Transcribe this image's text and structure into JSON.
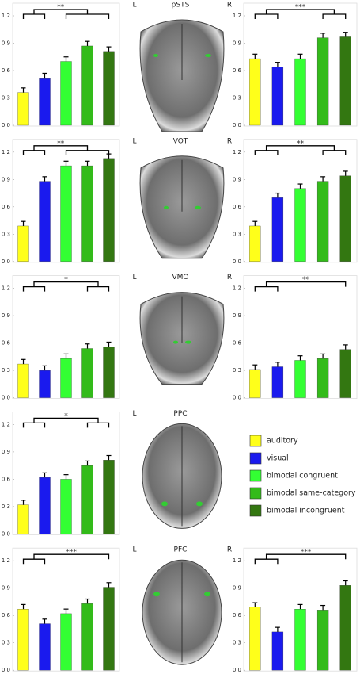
{
  "regions": [
    {
      "name": "pSTS",
      "left": "L",
      "right": "R"
    },
    {
      "name": "VOT",
      "left": "L",
      "right": "R"
    },
    {
      "name": "VMO",
      "left": "L",
      "right": "R"
    },
    {
      "name": "PPC",
      "left": "L"
    },
    {
      "name": "PFC",
      "left": "L",
      "right": "R"
    }
  ],
  "legend": [
    {
      "name": "auditory",
      "color": "#ffff1a"
    },
    {
      "name": "visual",
      "color": "#1a1aee"
    },
    {
      "name": "bimodal congruent",
      "color": "#33ff33"
    },
    {
      "name": "bimodal same-category",
      "color": "#33bb1a"
    },
    {
      "name": "bimodal incongruent",
      "color": "#337711"
    }
  ],
  "chart_data": [
    {
      "type": "bar",
      "values": [
        0.36,
        0.52,
        0.7,
        0.87,
        0.81
      ],
      "errors": [
        0.05,
        0.05,
        0.05,
        0.05,
        0.05
      ],
      "ylim": [
        0,
        1.2
      ],
      "yticks": [
        {
          "value": 0,
          "label": "0.0"
        },
        0.3,
        0.6,
        0.9,
        1.2
      ],
      "significance": "**"
    },
    {
      "type": "bar",
      "values": [
        0.73,
        0.64,
        0.73,
        0.96,
        0.97
      ],
      "errors": [
        0.05,
        0.05,
        0.05,
        0.05,
        0.05
      ],
      "ylim": [
        0,
        1.2
      ],
      "yticks": [
        {
          "value": 0,
          "label": "0.0"
        },
        0.3,
        0.6,
        0.9,
        1.2
      ],
      "significance": "***"
    },
    {
      "type": "bar",
      "values": [
        0.39,
        0.88,
        1.05,
        1.05,
        1.13
      ],
      "errors": [
        0.05,
        0.05,
        0.05,
        0.05,
        0.05
      ],
      "ylim": [
        0,
        1.2
      ],
      "yticks": [
        {
          "value": 0,
          "label": "0.0"
        },
        0.3,
        0.6,
        0.9,
        1.2
      ],
      "significance": "**"
    },
    {
      "type": "bar",
      "values": [
        0.39,
        0.7,
        0.8,
        0.88,
        0.94
      ],
      "errors": [
        0.05,
        0.05,
        0.05,
        0.05,
        0.05
      ],
      "ylim": [
        0,
        1.2
      ],
      "yticks": [
        {
          "value": 0,
          "label": "0.0"
        },
        0.3,
        0.6,
        0.9,
        1.2
      ],
      "significance": "**"
    },
    {
      "type": "bar",
      "values": [
        0.37,
        0.3,
        0.43,
        0.54,
        0.56
      ],
      "errors": [
        0.05,
        0.05,
        0.05,
        0.05,
        0.05
      ],
      "ylim": [
        0,
        1.2
      ],
      "yticks": [
        {
          "value": 0,
          "label": "0.0"
        },
        0.3,
        0.6,
        0.9,
        1.2
      ],
      "significance": "*"
    },
    {
      "type": "bar",
      "values": [
        0.31,
        0.34,
        0.41,
        0.43,
        0.53
      ],
      "errors": [
        0.05,
        0.05,
        0.05,
        0.05,
        0.05
      ],
      "ylim": [
        0,
        1.2
      ],
      "yticks": [
        {
          "value": 0,
          "label": "0.0"
        },
        0.3,
        0.6,
        0.9,
        1.2
      ],
      "significance": "**"
    },
    {
      "type": "bar",
      "values": [
        0.32,
        0.62,
        0.6,
        0.75,
        0.81
      ],
      "errors": [
        0.05,
        0.05,
        0.05,
        0.05,
        0.05
      ],
      "ylim": [
        0,
        1.2
      ],
      "yticks": [
        {
          "value": 0,
          "label": "0.0"
        },
        0.3,
        0.6,
        0.9,
        1.2
      ],
      "significance": "*"
    },
    {
      "type": "bar",
      "values": [
        0.67,
        0.51,
        0.62,
        0.73,
        0.91
      ],
      "errors": [
        0.05,
        0.05,
        0.05,
        0.05,
        0.05
      ],
      "ylim": [
        0,
        1.2
      ],
      "yticks": [
        {
          "value": 0,
          "label": "0.0"
        },
        0.3,
        0.6,
        0.9,
        1.2
      ],
      "significance": "***"
    },
    {
      "type": "bar",
      "values": [
        0.69,
        0.42,
        0.67,
        0.66,
        0.93
      ],
      "errors": [
        0.05,
        0.05,
        0.05,
        0.05,
        0.05
      ],
      "ylim": [
        0,
        1.2
      ],
      "yticks": [
        {
          "value": 0,
          "label": "0.0"
        },
        0.3,
        0.6,
        0.9,
        1.2
      ],
      "significance": "***"
    }
  ]
}
